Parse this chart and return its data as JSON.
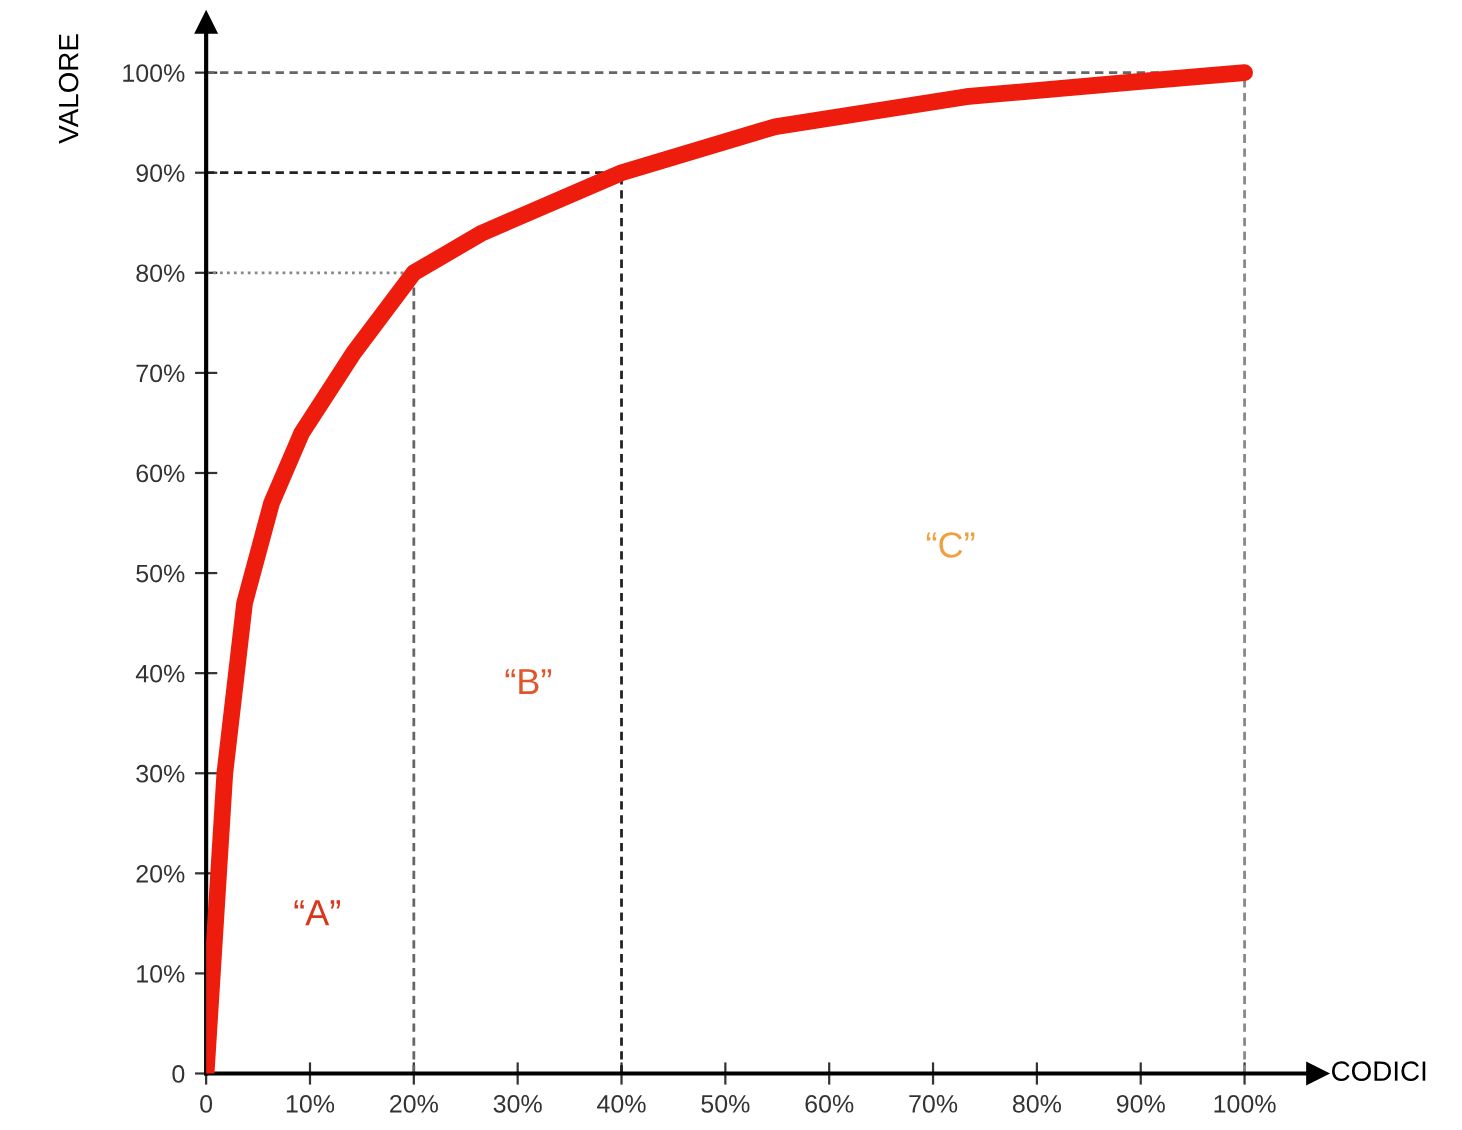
{
  "chart_data": {
    "type": "line",
    "xlabel": "CODICI",
    "ylabel": "VALORE",
    "x": [
      0,
      1.8,
      3.7,
      6.3,
      9.2,
      14.2,
      20,
      26.6,
      40,
      54.8,
      73.2,
      88.6,
      100
    ],
    "series": [
      {
        "color": "#ee1c0c",
        "values": [
          0,
          30,
          47,
          57,
          64,
          72,
          80,
          84,
          90,
          94.6,
          97.6,
          99,
          100
        ]
      }
    ],
    "xlim": [
      0,
      107
    ],
    "ylim": [
      0,
      105
    ],
    "xticks": [
      0,
      {
        "value": 10,
        "label": "10%"
      },
      {
        "value": 20,
        "label": "20%"
      },
      {
        "value": 30,
        "label": "30%"
      },
      {
        "value": 40,
        "label": "40%"
      },
      {
        "value": 50,
        "label": "50%"
      },
      {
        "value": 60,
        "label": "60%"
      },
      {
        "value": 70,
        "label": "70%"
      },
      {
        "value": 80,
        "label": "80%"
      },
      {
        "value": 90,
        "label": "90%"
      },
      {
        "value": 100,
        "label": "100%"
      }
    ],
    "yticks": [
      0,
      {
        "value": 10,
        "label": "10%"
      },
      {
        "value": 20,
        "label": "20%"
      },
      {
        "value": 30,
        "label": "30%"
      },
      {
        "value": 40,
        "label": "40%"
      },
      {
        "value": 50,
        "label": "50%"
      },
      {
        "value": 60,
        "label": "60%"
      },
      {
        "value": 70,
        "label": "70%"
      },
      {
        "value": 80,
        "label": "80%"
      },
      {
        "value": 90,
        "label": "90%"
      },
      {
        "value": 100,
        "label": "100%"
      }
    ],
    "ref_lines": [
      {
        "axis": "y",
        "value": 80,
        "color": "#888888",
        "line_style": "dotted"
      },
      {
        "axis": "y",
        "value": 90,
        "color": "#222222",
        "line_style": "dashed"
      },
      {
        "axis": "y",
        "value": 100,
        "color": "#666666",
        "line_style": "dashed"
      },
      {
        "axis": "x",
        "value": 20,
        "color": "#666666",
        "line_style": "dashed"
      },
      {
        "axis": "x",
        "value": 40,
        "color": "#222222",
        "line_style": "dashed"
      },
      {
        "axis": "x",
        "value": 100,
        "color": "#888888",
        "line_style": "dashed"
      }
    ],
    "annotations": [
      "“A”",
      "“B”",
      "“C”"
    ],
    "line_style": "solid",
    "marker": "none",
    "grid": false,
    "legend": false
  }
}
